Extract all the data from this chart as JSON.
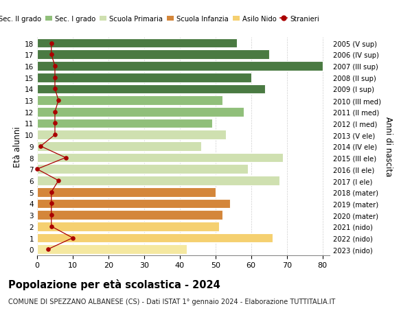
{
  "ages": [
    0,
    1,
    2,
    3,
    4,
    5,
    6,
    7,
    8,
    9,
    10,
    11,
    12,
    13,
    14,
    15,
    16,
    17,
    18
  ],
  "years": [
    "2023 (nido)",
    "2022 (nido)",
    "2021 (nido)",
    "2020 (mater)",
    "2019 (mater)",
    "2018 (mater)",
    "2017 (I ele)",
    "2016 (II ele)",
    "2015 (III ele)",
    "2014 (IV ele)",
    "2013 (V ele)",
    "2012 (I med)",
    "2011 (II med)",
    "2010 (III med)",
    "2009 (I sup)",
    "2008 (II sup)",
    "2007 (III sup)",
    "2006 (IV sup)",
    "2005 (V sup)"
  ],
  "bar_values": [
    42,
    66,
    51,
    52,
    54,
    50,
    68,
    59,
    69,
    46,
    53,
    49,
    58,
    52,
    64,
    60,
    80,
    65,
    56
  ],
  "bar_colors": [
    "#f5e8a0",
    "#f5d070",
    "#f5d070",
    "#d4863a",
    "#d4863a",
    "#d4863a",
    "#cfe0b0",
    "#cfe0b0",
    "#cfe0b0",
    "#cfe0b0",
    "#cfe0b0",
    "#90bf7a",
    "#90bf7a",
    "#90bf7a",
    "#4a7a42",
    "#4a7a42",
    "#4a7a42",
    "#4a7a42",
    "#4a7a42"
  ],
  "stranieri_values": [
    3,
    10,
    4,
    4,
    4,
    4,
    6,
    0,
    8,
    1,
    5,
    5,
    5,
    6,
    5,
    5,
    5,
    4,
    4
  ],
  "title": "Popolazione per età scolastica - 2024",
  "subtitle": "COMUNE DI SPEZZANO ALBANESE (CS) - Dati ISTAT 1° gennaio 2024 - Elaborazione TUTTITALIA.IT",
  "ylabel_left": "Età alunni",
  "ylabel_right": "Anni di nascita",
  "xlim": [
    0,
    82
  ],
  "xticks": [
    0,
    10,
    20,
    30,
    40,
    50,
    60,
    70,
    80
  ],
  "legend_labels": [
    "Sec. II grado",
    "Sec. I grado",
    "Scuola Primaria",
    "Scuola Infanzia",
    "Asilo Nido",
    "Stranieri"
  ],
  "legend_colors": [
    "#4a7a42",
    "#90bf7a",
    "#cfe0b0",
    "#d4863a",
    "#f5d070",
    "#aa0000"
  ],
  "color_stranieri": "#aa0000",
  "bg_color": "#ffffff",
  "grid_color": "#bbbbbb"
}
